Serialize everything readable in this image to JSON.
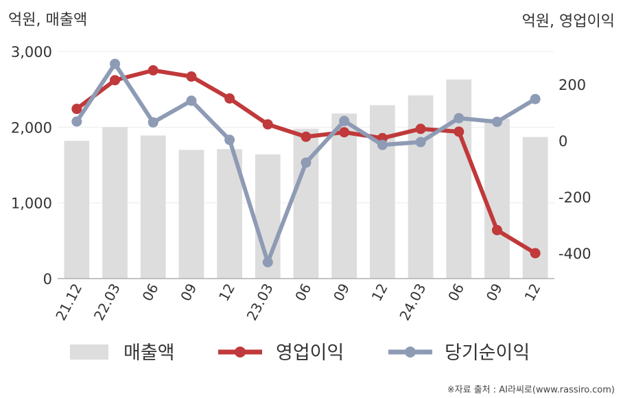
{
  "chart_data": {
    "type": "bar+line",
    "categories": [
      "21.12",
      "22.03",
      "06",
      "09",
      "12",
      "23.03",
      "06",
      "09",
      "12",
      "24.03",
      "06",
      "09",
      "12"
    ],
    "left_axis": {
      "unit_label": "억원, 매출액",
      "ylim": [
        0,
        3000
      ],
      "ticks": [
        "0",
        "1,000",
        "2,000",
        "3,000"
      ],
      "tick_values": [
        0,
        1000,
        2000,
        3000
      ]
    },
    "right_axis": {
      "unit_label": "억원, 영업이익",
      "ylim": [
        -500,
        300
      ],
      "ticks": [
        "-400",
        "-200",
        "0",
        "200"
      ],
      "tick_values": [
        -400,
        -200,
        0,
        200
      ]
    },
    "series": [
      {
        "name": "매출액",
        "type": "bar",
        "axis": "left",
        "color": "#dddddd",
        "values": [
          1820,
          2000,
          1890,
          1700,
          1710,
          1640,
          1980,
          2180,
          2290,
          2420,
          2630,
          2110,
          1870
        ]
      },
      {
        "name": "영업이익",
        "type": "line",
        "axis": "right",
        "color": "#c0393b",
        "values": [
          113,
          215,
          250,
          228,
          150,
          58,
          14,
          30,
          9,
          42,
          32,
          -318,
          -400
        ]
      },
      {
        "name": "당기순이익",
        "type": "line",
        "axis": "right",
        "color": "#8e9bb5",
        "values": [
          68,
          273,
          65,
          142,
          3,
          -432,
          -78,
          70,
          -15,
          -5,
          80,
          67,
          148
        ]
      }
    ],
    "grid": true,
    "legend_position": "bottom"
  },
  "source": "※자료 출처 : AI라씨로(www.rassiro.com)"
}
